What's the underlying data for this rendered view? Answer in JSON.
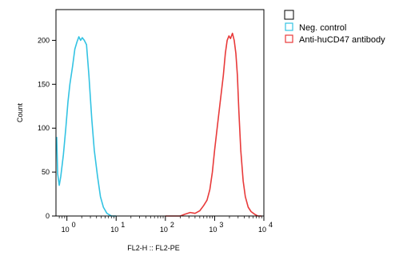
{
  "chart_data": {
    "type": "line",
    "title": "",
    "xlabel": "FL2-H :: FL2-PE",
    "ylabel": "Count",
    "x_scale": "log",
    "xlim": [
      0.6,
      10000
    ],
    "ylim": [
      0,
      235
    ],
    "grid": false,
    "legend_position": "top-right",
    "x_ticks": [
      {
        "value": 1,
        "base": "10",
        "exp": "0"
      },
      {
        "value": 10,
        "base": "10",
        "exp": "1"
      },
      {
        "value": 100,
        "base": "10",
        "exp": "2"
      },
      {
        "value": 1000,
        "base": "10",
        "exp": "3"
      },
      {
        "value": 10000,
        "base": "10",
        "exp": "4"
      }
    ],
    "y_ticks": [
      {
        "value": 0,
        "label": "0"
      },
      {
        "value": 50,
        "label": "50"
      },
      {
        "value": 100,
        "label": "100"
      },
      {
        "value": 150,
        "label": "150"
      },
      {
        "value": 200,
        "label": "200"
      }
    ],
    "legend_header_color": "#000000",
    "series": [
      {
        "name": "Neg. control",
        "color": "#33c3e3",
        "points": [
          [
            0.62,
            90
          ],
          [
            0.65,
            48
          ],
          [
            0.7,
            35
          ],
          [
            0.75,
            45
          ],
          [
            0.85,
            70
          ],
          [
            0.95,
            100
          ],
          [
            1.05,
            130
          ],
          [
            1.15,
            150
          ],
          [
            1.3,
            170
          ],
          [
            1.45,
            190
          ],
          [
            1.6,
            198
          ],
          [
            1.75,
            204
          ],
          [
            1.9,
            200
          ],
          [
            2.05,
            203
          ],
          [
            2.25,
            200
          ],
          [
            2.5,
            195
          ],
          [
            2.8,
            160
          ],
          [
            3.2,
            110
          ],
          [
            3.6,
            75
          ],
          [
            4.2,
            45
          ],
          [
            4.8,
            22
          ],
          [
            5.5,
            10
          ],
          [
            6.5,
            3
          ],
          [
            8,
            0
          ],
          [
            10,
            0
          ]
        ]
      },
      {
        "name": "Anti-huCD47 antibody",
        "color": "#e83a3a",
        "points": [
          [
            100,
            0
          ],
          [
            200,
            0
          ],
          [
            250,
            2
          ],
          [
            320,
            4
          ],
          [
            400,
            3
          ],
          [
            500,
            6
          ],
          [
            600,
            12
          ],
          [
            700,
            18
          ],
          [
            800,
            30
          ],
          [
            900,
            50
          ],
          [
            1000,
            75
          ],
          [
            1150,
            105
          ],
          [
            1300,
            130
          ],
          [
            1500,
            160
          ],
          [
            1650,
            185
          ],
          [
            1800,
            200
          ],
          [
            1950,
            205
          ],
          [
            2100,
            202
          ],
          [
            2300,
            208
          ],
          [
            2500,
            200
          ],
          [
            2700,
            185
          ],
          [
            2900,
            160
          ],
          [
            3100,
            120
          ],
          [
            3400,
            75
          ],
          [
            3800,
            40
          ],
          [
            4200,
            22
          ],
          [
            4800,
            10
          ],
          [
            5500,
            5
          ],
          [
            6500,
            2
          ],
          [
            7500,
            0
          ],
          [
            9000,
            0
          ]
        ]
      }
    ]
  }
}
